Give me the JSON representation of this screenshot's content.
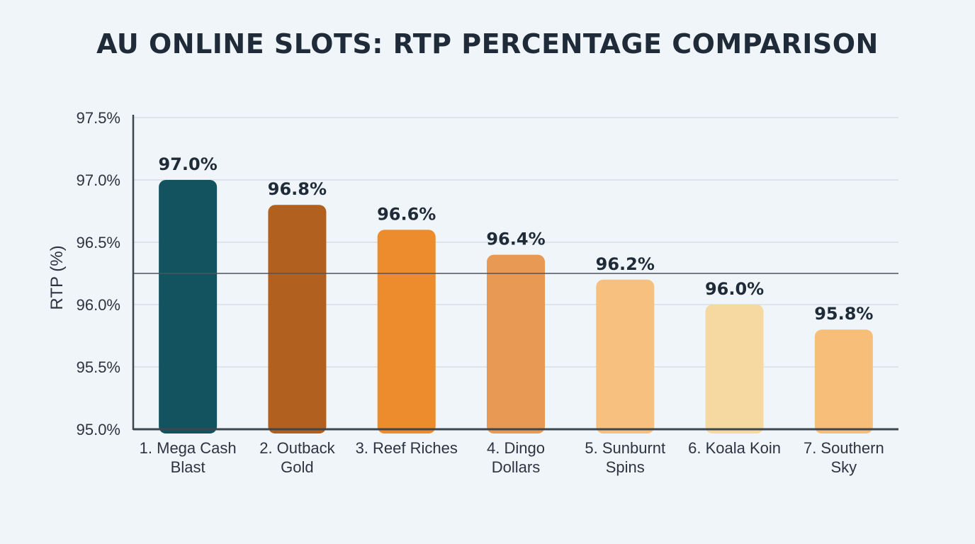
{
  "chart_data": {
    "type": "bar",
    "title": "AU ONLINE SLOTS: RTP PERCENTAGE COMPARISON",
    "xlabel": "",
    "ylabel": "RTP (%)",
    "ylim": [
      95.0,
      97.5
    ],
    "yticks": [
      "97.5%",
      "97.0%",
      "96.5%",
      "96.0%",
      "95.5%",
      "95.0%"
    ],
    "ytick_values": [
      97.5,
      97.0,
      96.5,
      96.0,
      95.5,
      95.0
    ],
    "grid": true,
    "reference_line": 96.25,
    "categories": [
      [
        "1. Mega Cash",
        "Blast"
      ],
      [
        "2. Outback",
        "Gold"
      ],
      [
        "3. Reef Riches"
      ],
      [
        "4. Dingo",
        "Dollars"
      ],
      [
        "5. Sunburnt",
        "Spins"
      ],
      [
        "6. Koala Koin"
      ],
      [
        "7. Southern",
        "Sky"
      ]
    ],
    "values": [
      97.0,
      96.8,
      96.6,
      96.4,
      96.2,
      96.0,
      95.8
    ],
    "value_labels": [
      "97.0%",
      "96.8%",
      "96.6%",
      "96.4%",
      "96.2%",
      "96.0%",
      "95.8%"
    ],
    "colors": [
      "#13535f",
      "#b2601f",
      "#ec8c2c",
      "#e89a55",
      "#f8c07f",
      "#f5d9a0",
      "#f7be7a"
    ]
  }
}
